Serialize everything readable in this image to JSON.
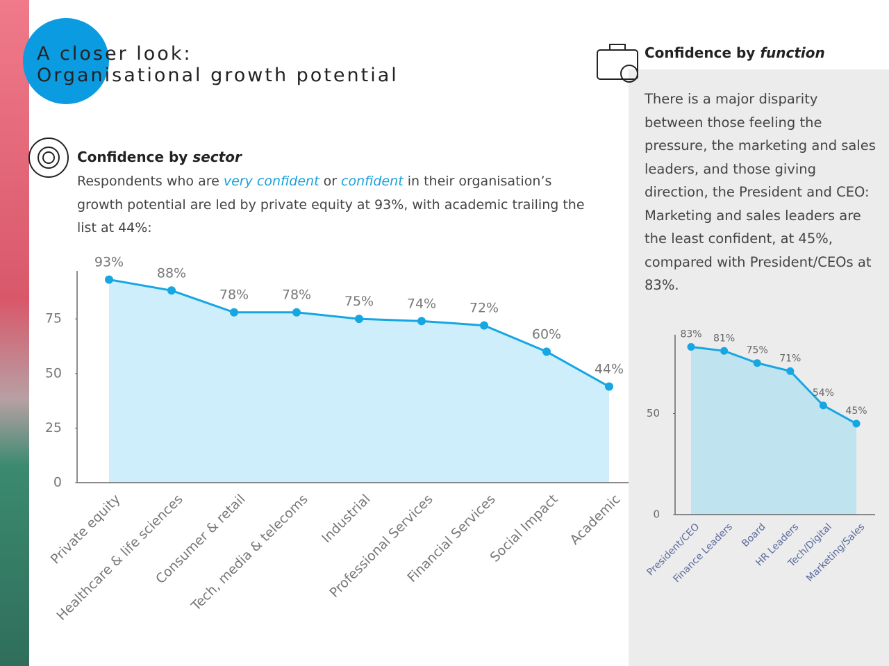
{
  "header": {
    "title_line1": "A closer look:",
    "title_line2": "Organisational growth potential"
  },
  "sector_section": {
    "heading": "Confidence by ",
    "heading_em": "sector",
    "text": [
      "Respondents who are ",
      "very confident",
      " or ",
      "confident",
      " in their organisation’s growth potential are led by private equity at 93%, with academic trailing the list at 44%:"
    ]
  },
  "function_section": {
    "heading": "Confidence by ",
    "heading_em": "function",
    "text": "There is a major disparity between those feeling the pressure, the marketing and sales leaders, and those giving direction, the President and CEO: Marketing and sales leaders are the least confident, at 45%, compared with President/CEOs at 83%."
  },
  "chart_data": [
    {
      "type": "area",
      "categories": [
        "Private equity",
        "Healthcare & life sciences",
        "Consumer & retail",
        "Tech, media & telecoms",
        "Industrial",
        "Professional Services",
        "Financial Services",
        "Social Impact",
        "Academic"
      ],
      "values": [
        93,
        88,
        78,
        78,
        75,
        74,
        72,
        60,
        44
      ],
      "value_labels": [
        "93%",
        "88%",
        "78%",
        "78%",
        "75%",
        "74%",
        "72%",
        "60%",
        "44%"
      ],
      "color": "#16a6e2",
      "fill": "#cdeefa",
      "ylim": [
        0,
        97
      ],
      "yticks": [
        0,
        25,
        50,
        75
      ]
    },
    {
      "type": "area",
      "categories": [
        "President/CEO",
        "Finance Leaders",
        "Board",
        "HR Leaders",
        "Tech/Digital",
        "Marketing/Sales"
      ],
      "values": [
        83,
        81,
        75,
        71,
        54,
        45
      ],
      "value_labels": [
        "83%",
        "81%",
        "75%",
        "71%",
        "54%",
        "45%"
      ],
      "color": "#16a6e2",
      "fill": "#bfe3ef",
      "ylim": [
        0,
        89
      ],
      "yticks": [
        0,
        50
      ]
    }
  ]
}
